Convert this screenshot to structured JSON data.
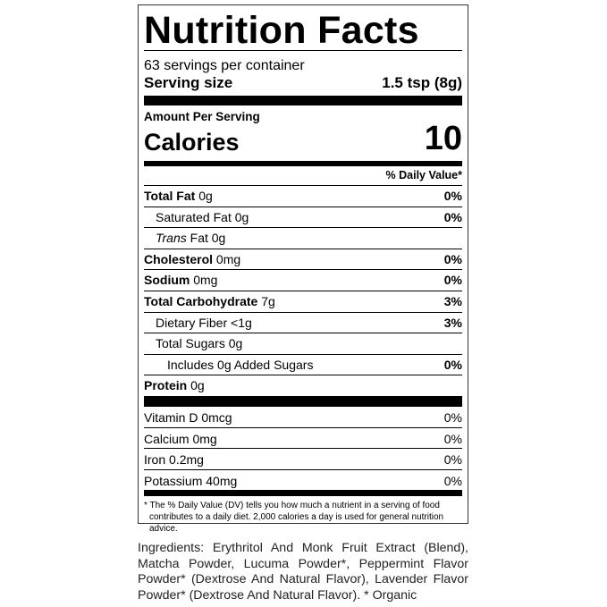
{
  "title": "Nutrition Facts",
  "servings_per_container": "63 servings per container",
  "serving_size": {
    "label": "Serving size",
    "value": "1.5 tsp (8g)"
  },
  "amount_per_serving": "Amount Per Serving",
  "calories": {
    "label": "Calories",
    "value": "10"
  },
  "daily_value_header": "% Daily Value*",
  "nutrients": [
    {
      "name": "Total Fat",
      "amount": "0g",
      "dv": "0%",
      "bold": true,
      "indent": 0
    },
    {
      "name": "Saturated Fat",
      "amount": "0g",
      "dv": "0%",
      "bold": false,
      "indent": 1
    },
    {
      "name": "Trans",
      "name_suffix": "Fat",
      "amount": "0g",
      "dv": "",
      "bold": false,
      "indent": 1
    },
    {
      "name": "Cholesterol",
      "amount": "0mg",
      "dv": "0%",
      "bold": true,
      "indent": 0
    },
    {
      "name": "Sodium",
      "amount": "0mg",
      "dv": "0%",
      "bold": true,
      "indent": 0
    },
    {
      "name": "Total Carbohydrate",
      "amount": "7g",
      "dv": "3%",
      "bold": true,
      "indent": 0
    },
    {
      "name": "Dietary Fiber",
      "amount": "<1g",
      "dv": "3%",
      "bold": false,
      "indent": 1
    },
    {
      "name": "Total Sugars",
      "amount": "0g",
      "dv": "",
      "bold": false,
      "indent": 1
    },
    {
      "name": "Includes 0g Added Sugars",
      "amount": "",
      "dv": "0%",
      "bold": false,
      "indent": 2
    },
    {
      "name": "Protein",
      "amount": "0g",
      "dv": "",
      "bold": true,
      "indent": 0
    }
  ],
  "vitamins": [
    {
      "name": "Vitamin D 0mcg",
      "dv": "0%"
    },
    {
      "name": "Calcium 0mg",
      "dv": "0%"
    },
    {
      "name": "Iron 0.2mg",
      "dv": "0%"
    },
    {
      "name": "Potassium 40mg",
      "dv": "0%"
    }
  ],
  "footnote": "* The % Daily Value (DV) tells you how much a nutrient in a serving of food contributes to a daily diet. 2,000 calories a day is used for general nutrition advice.",
  "ingredients": "Ingredients: Erythritol And Monk Fruit Extract (Blend), Matcha Powder, Lucuma Powder*, Peppermint Flavor Powder* (Dextrose And Natural Flavor), Lavender Flavor Powder* (Dextrose And Natural Flavor). * Organic"
}
